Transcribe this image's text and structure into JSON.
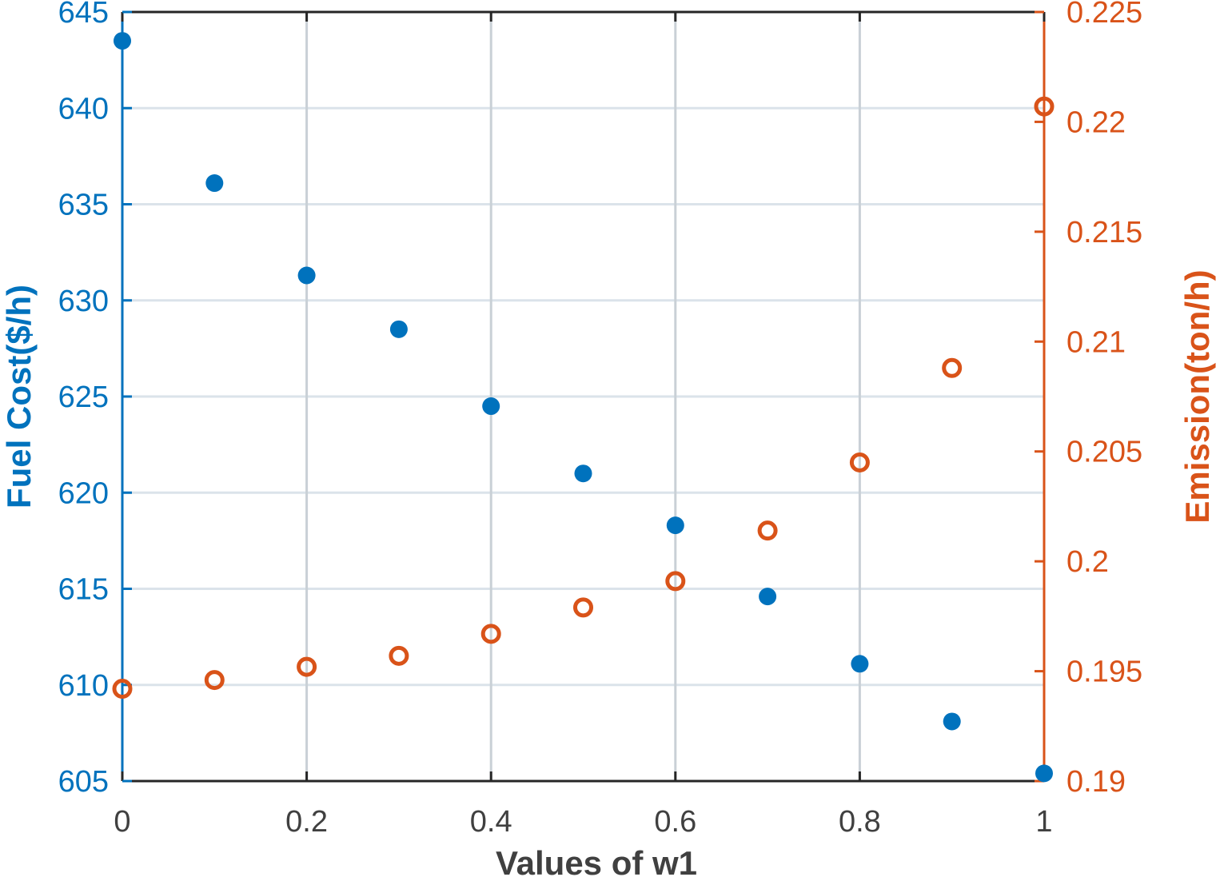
{
  "colors": {
    "left_axis": "#0072BD",
    "right_axis": "#D95319",
    "frame": "#262626",
    "grid": "#dbe3ea",
    "grid_x": "#c9d0d6",
    "x_tick_text": "#404040"
  },
  "chart_data": {
    "type": "scatter",
    "grid": true,
    "xlabel": "Values of w1",
    "ylabel_left": "Fuel Cost($/h)",
    "ylabel_right": "Emission(ton/h)",
    "xlim": [
      0,
      1
    ],
    "ylim_left": [
      605,
      645
    ],
    "ylim_right": [
      0.19,
      0.225
    ],
    "x_ticks": [
      "0",
      "0.2",
      "0.4",
      "0.6",
      "0.8",
      "1"
    ],
    "y_left_ticks": [
      "605",
      "610",
      "615",
      "620",
      "625",
      "630",
      "635",
      "640",
      "645"
    ],
    "y_right_ticks": [
      "0.19",
      "0.195",
      "0.2",
      "0.205",
      "0.21",
      "0.215",
      "0.22",
      "0.225"
    ],
    "x": [
      0,
      0.1,
      0.2,
      0.3,
      0.4,
      0.5,
      0.6,
      0.7,
      0.8,
      0.9,
      1
    ],
    "series": [
      {
        "axis": "left",
        "marker": "filled-circle",
        "color": "#0072BD",
        "values": [
          643.5,
          636.1,
          631.3,
          628.5,
          624.5,
          621.0,
          618.3,
          614.6,
          611.1,
          608.1,
          605.4
        ]
      },
      {
        "axis": "right",
        "marker": "open-circle",
        "color": "#D95319",
        "values": [
          0.1942,
          0.1946,
          0.1952,
          0.1957,
          0.1967,
          0.1979,
          0.1991,
          0.2014,
          0.2045,
          0.2088,
          0.2207
        ]
      }
    ]
  }
}
